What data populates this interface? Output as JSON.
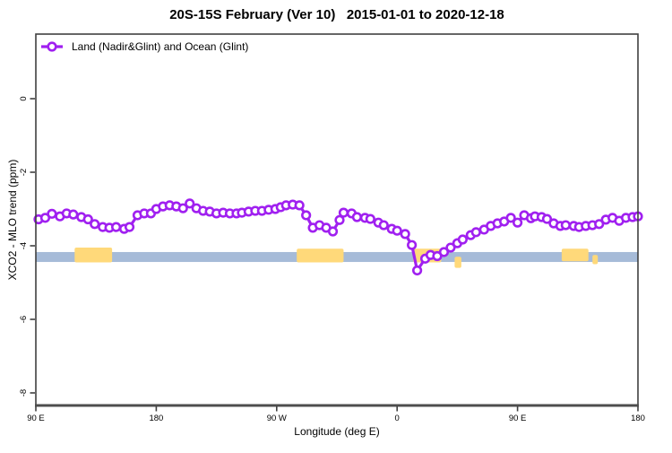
{
  "title": "20S-15S February (Ver 10)   2015-01-01 to 2020-12-18",
  "legend": {
    "label": "Land (Nadir&Glint) and Ocean (Glint)"
  },
  "axes": {
    "x_label": "Longitude (deg E)",
    "y_label": "XCO2 - MLO trend (ppm)"
  },
  "colors": {
    "series": "#A020F0",
    "marker_fill": "#ffffff",
    "ocean_band": "#A6BBD8",
    "land_patch": "#FFD97A",
    "axis": "#404040",
    "text": "#000000"
  },
  "chart_data": {
    "type": "line",
    "title": "20S-15S February (Ver 10)   2015-01-01 to 2020-12-18",
    "xlabel": "Longitude (deg E)",
    "ylabel": "XCO2 - MLO trend (ppm)",
    "xlim": [
      90,
      540
    ],
    "ylim": [
      -8.35,
      1.75
    ],
    "grid": false,
    "legend_position": "top-left",
    "x_ticks": [
      {
        "x": 90,
        "label": "90 E"
      },
      {
        "x": 180,
        "label": "180"
      },
      {
        "x": 270,
        "label": "90 W"
      },
      {
        "x": 360,
        "label": "0"
      },
      {
        "x": 450,
        "label": "90 E"
      },
      {
        "x": 540,
        "label": "180"
      }
    ],
    "y_ticks": [
      {
        "y": 0,
        "label": "0"
      },
      {
        "y": -2,
        "label": "-2"
      },
      {
        "y": -4,
        "label": "-4"
      },
      {
        "y": -6,
        "label": "-6"
      },
      {
        "y": -8,
        "label": "-8"
      }
    ],
    "series": [
      {
        "name": "Land (Nadir&Glint) and Ocean (Glint)",
        "color": "#A020F0",
        "marker": "open-circle",
        "x": [
          92,
          97,
          102,
          108,
          113,
          118,
          124,
          129,
          134,
          140,
          145,
          150,
          156,
          160,
          166,
          171,
          176,
          180,
          185,
          190,
          195,
          200,
          205,
          210,
          215,
          220,
          225,
          230,
          235,
          240,
          244,
          249,
          254,
          259,
          264,
          269,
          273,
          277,
          282,
          287,
          292,
          297,
          302,
          307,
          312,
          317,
          320,
          326,
          330,
          336,
          340,
          346,
          350,
          356,
          360,
          366,
          371,
          375,
          381,
          385,
          390,
          395,
          400,
          405,
          409,
          415,
          419,
          425,
          430,
          435,
          440,
          445,
          450,
          455,
          460,
          463,
          468,
          472,
          477,
          482,
          486,
          492,
          496,
          501,
          506,
          511,
          516,
          521,
          526,
          531,
          536,
          540
        ],
        "y": [
          -3.28,
          -3.24,
          -3.13,
          -3.2,
          -3.12,
          -3.15,
          -3.22,
          -3.28,
          -3.41,
          -3.49,
          -3.51,
          -3.49,
          -3.54,
          -3.49,
          -3.17,
          -3.12,
          -3.12,
          -3.0,
          -2.93,
          -2.9,
          -2.93,
          -2.98,
          -2.85,
          -2.98,
          -3.05,
          -3.07,
          -3.12,
          -3.1,
          -3.12,
          -3.12,
          -3.1,
          -3.07,
          -3.05,
          -3.05,
          -3.02,
          -3.0,
          -2.95,
          -2.9,
          -2.88,
          -2.9,
          -3.17,
          -3.51,
          -3.44,
          -3.51,
          -3.61,
          -3.3,
          -3.1,
          -3.12,
          -3.22,
          -3.24,
          -3.27,
          -3.37,
          -3.44,
          -3.54,
          -3.59,
          -3.68,
          -3.98,
          -4.67,
          -4.35,
          -4.25,
          -4.28,
          -4.17,
          -4.05,
          -3.93,
          -3.83,
          -3.71,
          -3.63,
          -3.56,
          -3.46,
          -3.39,
          -3.34,
          -3.24,
          -3.37,
          -3.17,
          -3.25,
          -3.2,
          -3.22,
          -3.27,
          -3.39,
          -3.46,
          -3.44,
          -3.46,
          -3.49,
          -3.46,
          -3.44,
          -3.41,
          -3.29,
          -3.24,
          -3.32,
          -3.24,
          -3.22,
          -3.2
        ]
      }
    ],
    "ocean_band": {
      "x1": 90,
      "x2": 540,
      "top": -4.17,
      "bottom": -4.44
    },
    "land_patches": [
      {
        "x1": 119,
        "x2": 147,
        "top": -4.05,
        "bottom": -4.45
      },
      {
        "x1": 285,
        "x2": 320,
        "top": -4.08,
        "bottom": -4.45
      },
      {
        "x1": 372,
        "x2": 393,
        "top": -4.08,
        "bottom": -4.45
      },
      {
        "x1": 403,
        "x2": 408,
        "top": -4.3,
        "bottom": -4.6
      },
      {
        "x1": 483,
        "x2": 503,
        "top": -4.08,
        "bottom": -4.42
      },
      {
        "x1": 506,
        "x2": 510,
        "top": -4.25,
        "bottom": -4.5
      }
    ]
  }
}
